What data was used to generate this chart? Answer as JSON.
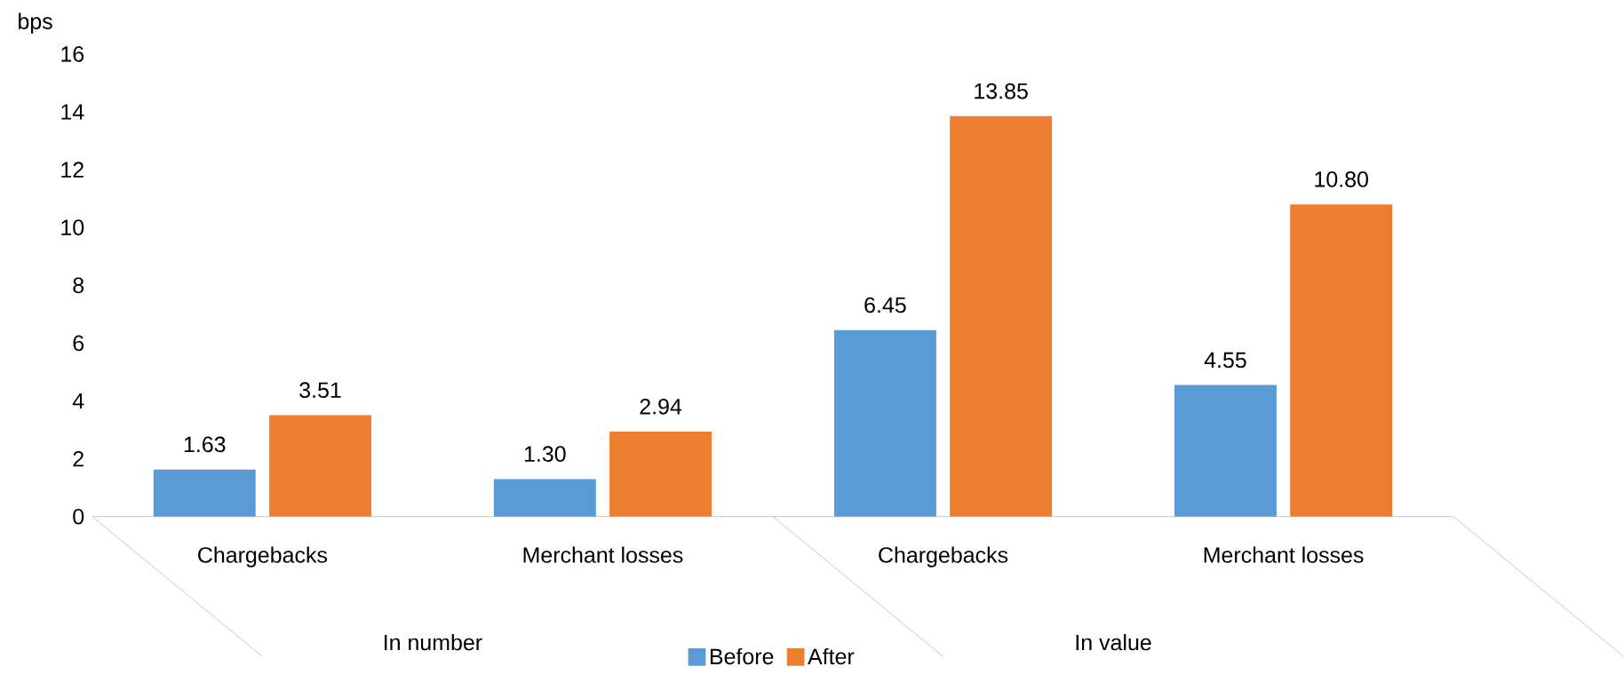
{
  "chart_data": {
    "type": "bar",
    "ylabel": "bps",
    "categories": [
      "Chargebacks",
      "Merchant losses",
      "Chargebacks",
      "Merchant losses"
    ],
    "annotations": [
      "In number",
      "In value"
    ],
    "series": [
      {
        "name": "Before",
        "color": "#5b9bd5",
        "values": [
          1.63,
          1.3,
          6.45,
          4.55
        ],
        "value_labels": [
          "1.63",
          "1.30",
          "6.45",
          "4.55"
        ]
      },
      {
        "name": "After",
        "color": "#ed7d31",
        "values": [
          3.51,
          2.94,
          13.85,
          10.8
        ],
        "value_labels": [
          "3.51",
          "2.94",
          "13.85",
          "10.80"
        ]
      }
    ],
    "ylim": [
      0,
      16
    ],
    "yticks": [
      0,
      2,
      4,
      6,
      8,
      10,
      12,
      14,
      16
    ],
    "grid": false,
    "legend": "bottom"
  }
}
